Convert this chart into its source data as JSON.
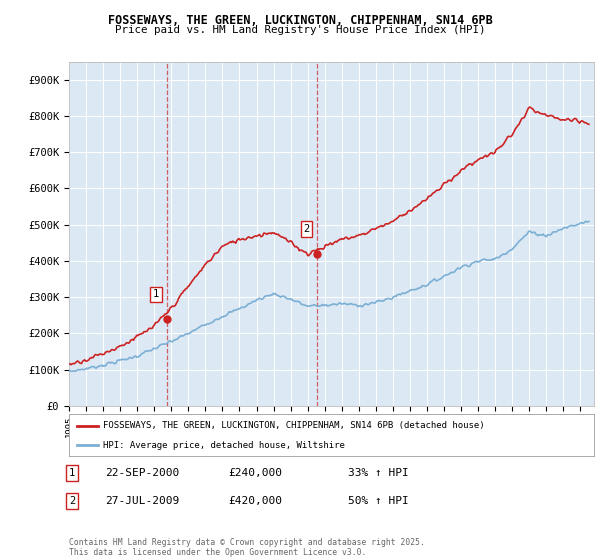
{
  "title1": "FOSSEWAYS, THE GREEN, LUCKINGTON, CHIPPENHAM, SN14 6PB",
  "title2": "Price paid vs. HM Land Registry's House Price Index (HPI)",
  "ylabel_ticks": [
    "£0",
    "£100K",
    "£200K",
    "£300K",
    "£400K",
    "£500K",
    "£600K",
    "£700K",
    "£800K",
    "£900K"
  ],
  "ytick_values": [
    0,
    100000,
    200000,
    300000,
    400000,
    500000,
    600000,
    700000,
    800000,
    900000
  ],
  "ylim": [
    0,
    950000
  ],
  "xlim_start": 1995.0,
  "xlim_end": 2025.8,
  "background_color": "#dce9f5",
  "sale1_x": 2000.72,
  "sale1_y": 240000,
  "sale2_x": 2009.56,
  "sale2_y": 420000,
  "hpi_color": "#7bafd4",
  "price_color": "#cc2222",
  "legend_label1": "FOSSEWAYS, THE GREEN, LUCKINGTON, CHIPPENHAM, SN14 6PB (detached house)",
  "legend_label2": "HPI: Average price, detached house, Wiltshire",
  "annotation1_date": "22-SEP-2000",
  "annotation1_price": "£240,000",
  "annotation1_hpi": "33% ↑ HPI",
  "annotation2_date": "27-JUL-2009",
  "annotation2_price": "£420,000",
  "annotation2_hpi": "50% ↑ HPI",
  "footer": "Contains HM Land Registry data © Crown copyright and database right 2025.\nThis data is licensed under the Open Government Licence v3.0.",
  "xtick_years": [
    1995,
    1996,
    1997,
    1998,
    1999,
    2000,
    2001,
    2002,
    2003,
    2004,
    2005,
    2006,
    2007,
    2008,
    2009,
    2010,
    2011,
    2012,
    2013,
    2014,
    2015,
    2016,
    2017,
    2018,
    2019,
    2020,
    2021,
    2022,
    2023,
    2024,
    2025
  ],
  "hpi_pts_x": [
    1995,
    1996,
    1997,
    1998,
    1999,
    2000,
    2001,
    2002,
    2003,
    2004,
    2005,
    2006,
    2007,
    2008,
    2009,
    2010,
    2011,
    2012,
    2013,
    2014,
    2015,
    2016,
    2017,
    2018,
    2019,
    2020,
    2021,
    2022,
    2023,
    2024,
    2025.5
  ],
  "hpi_pts_y": [
    95000,
    103000,
    113000,
    125000,
    138000,
    158000,
    178000,
    200000,
    225000,
    248000,
    268000,
    292000,
    310000,
    295000,
    275000,
    278000,
    282000,
    278000,
    285000,
    300000,
    318000,
    335000,
    358000,
    383000,
    400000,
    405000,
    435000,
    480000,
    470000,
    490000,
    510000
  ],
  "price_pts_x": [
    1995,
    1996,
    1997,
    1998,
    1999,
    2000,
    2001,
    2002,
    2003,
    2004,
    2005,
    2006,
    2007,
    2008,
    2009,
    2010,
    2011,
    2012,
    2013,
    2014,
    2015,
    2016,
    2017,
    2018,
    2019,
    2020,
    2021,
    2022,
    2023,
    2024,
    2025.5
  ],
  "price_pts_y": [
    115000,
    128000,
    145000,
    165000,
    190000,
    220000,
    270000,
    330000,
    390000,
    440000,
    460000,
    470000,
    480000,
    450000,
    420000,
    440000,
    460000,
    470000,
    490000,
    510000,
    540000,
    570000,
    610000,
    650000,
    680000,
    700000,
    750000,
    820000,
    800000,
    790000,
    780000
  ]
}
